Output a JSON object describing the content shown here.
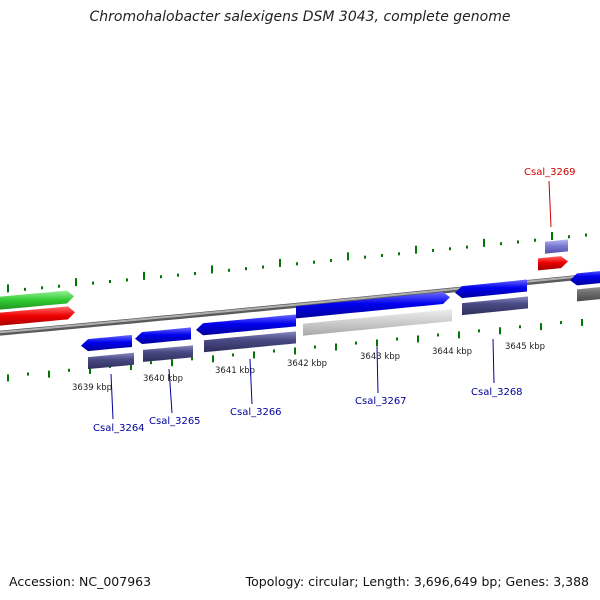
{
  "title": "Chromohalobacter salexigens DSM 3043, complete genome",
  "accession_text": "Accession: NC_007963",
  "summary_text": "Topology: circular; Length: 3,696,649 bp; Genes: 3,388",
  "colors": {
    "forward_gene": "#0000ee",
    "reverse_gene": "#ee0000",
    "highlight_gene": "#cc0000",
    "cds_product": "#4a4a85",
    "rna_green": "#33cc33",
    "tick_green": "#007700",
    "backbone_gray": "#8a8a8a",
    "label_blue": "#000099",
    "label_red": "#cc0000"
  },
  "tick_labels": [
    "3639 kbp",
    "3640 kbp",
    "3641 kbp",
    "3642 kbp",
    "3643 kbp",
    "3644 kbp",
    "3645 kbp"
  ],
  "gene_labels": [
    {
      "name": "Csal_3264",
      "color": "blue"
    },
    {
      "name": "Csal_3265",
      "color": "blue"
    },
    {
      "name": "Csal_3266",
      "color": "blue"
    },
    {
      "name": "Csal_3267",
      "color": "blue"
    },
    {
      "name": "Csal_3268",
      "color": "blue"
    },
    {
      "name": "Csal_3269",
      "color": "red"
    }
  ]
}
